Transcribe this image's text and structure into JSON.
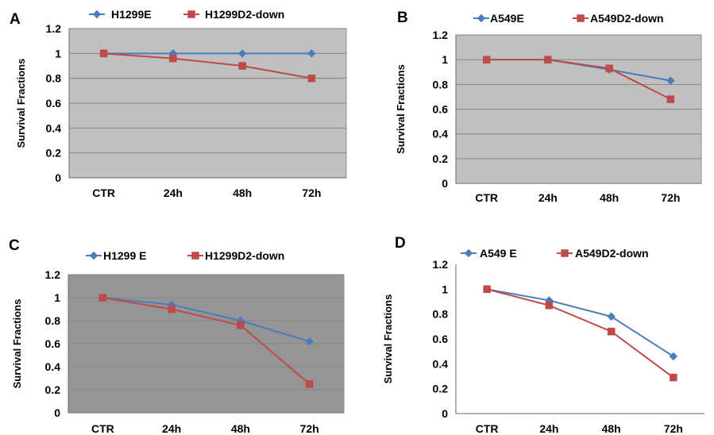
{
  "chart_data": [
    {
      "panel": "A",
      "type": "line",
      "categories": [
        "CTR",
        "24h",
        "48h",
        "72h"
      ],
      "ylabel": "Survival Fractions",
      "ylim": [
        0,
        1.2
      ],
      "yticks": [
        "0",
        "0.2",
        "0.4",
        "0.6",
        "0.8",
        "1",
        "1.2"
      ],
      "grid": true,
      "legend_position": "top",
      "plot_background": "#c0c0c0",
      "series": [
        {
          "name": "H1299E",
          "color": "#4a7ebb",
          "marker": "diamond",
          "values": [
            1.0,
            1.0,
            1.0,
            1.0
          ]
        },
        {
          "name": "H1299D2-down",
          "color": "#be4b48",
          "marker": "square",
          "values": [
            1.0,
            0.96,
            0.9,
            0.8
          ]
        }
      ]
    },
    {
      "panel": "B",
      "type": "line",
      "categories": [
        "CTR",
        "24h",
        "48h",
        "72h"
      ],
      "ylabel": "Survival Fractions",
      "ylim": [
        0,
        1.2
      ],
      "yticks": [
        "0",
        "0.2",
        "0.4",
        "0.6",
        "0.8",
        "1",
        "1.2"
      ],
      "grid": true,
      "legend_position": "top",
      "plot_background": "#c0c0c0",
      "series": [
        {
          "name": "A549E",
          "color": "#4a7ebb",
          "marker": "diamond",
          "values": [
            1.0,
            1.0,
            0.92,
            0.83
          ]
        },
        {
          "name": "A549D2-down",
          "color": "#be4b48",
          "marker": "square",
          "values": [
            1.0,
            1.0,
            0.93,
            0.68
          ]
        }
      ]
    },
    {
      "panel": "C",
      "type": "line",
      "categories": [
        "CTR",
        "24h",
        "48h",
        "72h"
      ],
      "ylabel": "Survival Fractions",
      "ylim": [
        0,
        1.2
      ],
      "yticks": [
        "0",
        "0.2",
        "0.4",
        "0.6",
        "0.8",
        "1",
        "1.2"
      ],
      "grid": true,
      "legend_position": "top",
      "plot_background": "#959595",
      "series": [
        {
          "name": "H1299 E",
          "color": "#4a7ebb",
          "marker": "diamond",
          "values": [
            1.0,
            0.94,
            0.8,
            0.62
          ]
        },
        {
          "name": "H1299D2-down",
          "color": "#be4b48",
          "marker": "square",
          "values": [
            1.0,
            0.9,
            0.76,
            0.25
          ]
        }
      ]
    },
    {
      "panel": "D",
      "type": "line",
      "categories": [
        "CTR",
        "24h",
        "48h",
        "72h"
      ],
      "ylabel": "Survival Fractions",
      "ylim": [
        0,
        1.2
      ],
      "yticks": [
        "0",
        "0.2",
        "0.4",
        "0.6",
        "0.8",
        "1",
        "1.2"
      ],
      "grid": false,
      "legend_position": "top",
      "plot_background": "#ffffff",
      "series": [
        {
          "name": "A549 E",
          "color": "#4a7ebb",
          "marker": "diamond",
          "values": [
            1.0,
            0.91,
            0.78,
            0.46
          ]
        },
        {
          "name": "A549D2-down",
          "color": "#be4b48",
          "marker": "square",
          "values": [
            1.0,
            0.87,
            0.66,
            0.29
          ]
        }
      ]
    }
  ]
}
